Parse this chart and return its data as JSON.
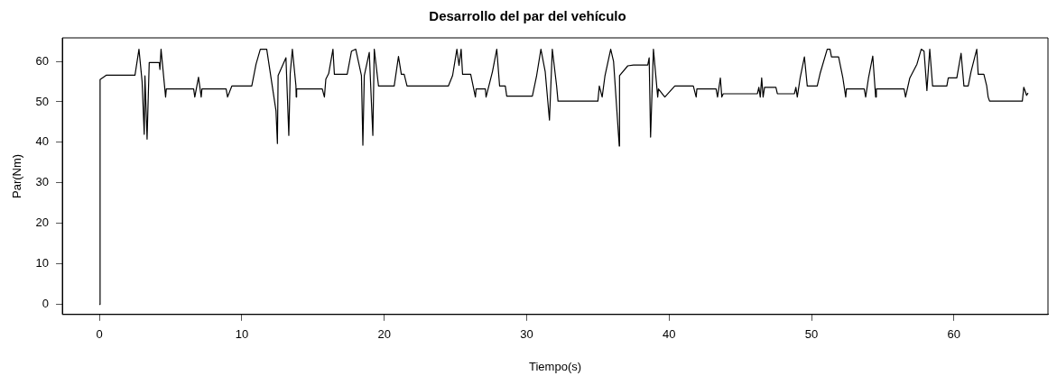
{
  "chart_data": {
    "type": "line",
    "title": "Desarrollo del par del vehículo",
    "xlabel": "Tiempo(s)",
    "ylabel": "Par(Nm)",
    "x": [
      0,
      0.05,
      0.5,
      2.5,
      2.78,
      3.0,
      3.15,
      3.2,
      3.35,
      3.5,
      4.2,
      4.25,
      4.33,
      4.65,
      4.7,
      6.62,
      6.7,
      6.96,
      7.15,
      7.2,
      8.9,
      9.0,
      9.3,
      10.7,
      11.0,
      11.3,
      11.75,
      12.4,
      12.5,
      12.55,
      13.1,
      13.3,
      13.4,
      13.55,
      13.8,
      13.82,
      13.85,
      15.65,
      15.8,
      15.9,
      16.1,
      16.4,
      16.5,
      17.4,
      17.7,
      18.0,
      18.4,
      18.5,
      18.6,
      18.95,
      19.2,
      19.3,
      19.6,
      20.7,
      21.0,
      21.2,
      21.4,
      21.6,
      24.5,
      24.8,
      25.1,
      25.25,
      25.4,
      25.5,
      26.07,
      26.4,
      26.45,
      27.1,
      27.15,
      27.6,
      27.9,
      28.1,
      28.5,
      28.6,
      30.4,
      30.7,
      31.0,
      31.3,
      31.6,
      31.8,
      32.1,
      32.2,
      35.0,
      35.1,
      35.3,
      35.5,
      35.9,
      36.1,
      36.5,
      36.52,
      37.1,
      37.5,
      38.5,
      38.6,
      38.7,
      38.9,
      39.2,
      39.25,
      39.7,
      40.4,
      41.7,
      41.9,
      41.95,
      43.3,
      43.4,
      43.6,
      43.7,
      43.8,
      46.2,
      46.3,
      46.4,
      46.5,
      46.6,
      46.7,
      47.5,
      47.6,
      48.8,
      48.9,
      49.0,
      49.2,
      49.5,
      49.7,
      50.4,
      50.6,
      51.1,
      51.3,
      51.4,
      51.9,
      52.2,
      52.4,
      52.45,
      53.7,
      53.8,
      54.0,
      54.3,
      54.5,
      54.55,
      56.5,
      56.6,
      56.9,
      57.4,
      57.7,
      57.9,
      58.1,
      58.3,
      58.5,
      59.5,
      59.6,
      60.2,
      60.5,
      60.7,
      61.0,
      61.2,
      61.6,
      61.7,
      62.1,
      62.3,
      62.4,
      62.5,
      64.8,
      64.9,
      65.1,
      65.2
    ],
    "series": [
      {
        "color": "#000000",
        "values": [
          0,
          55.5,
          56.6,
          56.6,
          63.0,
          55,
          42,
          56.4,
          40.8,
          59.7,
          59.7,
          58,
          63.0,
          51.2,
          53.2,
          53.2,
          51.2,
          56.1,
          51.2,
          53.2,
          53.2,
          51.2,
          53.9,
          53.9,
          59.3,
          63.0,
          63.0,
          47.8,
          39.7,
          56.5,
          60.9,
          41.7,
          57,
          63.0,
          54,
          51.2,
          53.2,
          53.2,
          51.2,
          55.6,
          57,
          63.0,
          56.8,
          56.8,
          62.5,
          63.0,
          56.5,
          39.3,
          56.5,
          62.2,
          41.7,
          63.0,
          53.9,
          53.9,
          61.2,
          56.8,
          56.8,
          53.9,
          53.9,
          56.5,
          63.0,
          59,
          63.0,
          56.8,
          56.8,
          51.2,
          53.2,
          53.2,
          51.2,
          57.5,
          63.0,
          53.9,
          53.9,
          51.4,
          51.4,
          56.5,
          63.0,
          57.5,
          45.5,
          63.0,
          54,
          50.2,
          50.2,
          53.9,
          51.2,
          56.5,
          63.0,
          60,
          39.1,
          56.5,
          58.9,
          59.1,
          59.1,
          60.9,
          41.3,
          63.0,
          51.2,
          53.2,
          51.2,
          53.9,
          53.9,
          51.2,
          53.2,
          53.2,
          51.2,
          55.9,
          51.2,
          52.0,
          52.0,
          53.6,
          51.2,
          55.9,
          51.2,
          53.6,
          53.6,
          52.0,
          52.0,
          53.6,
          51.2,
          55.9,
          61.1,
          53.9,
          53.9,
          57,
          63.0,
          63.0,
          61.1,
          61.1,
          55.9,
          51.2,
          53.2,
          53.2,
          51.2,
          55.9,
          61.3,
          51.2,
          53.2,
          53.2,
          51.2,
          55.9,
          59.3,
          63.0,
          62.5,
          52.8,
          63.0,
          53.9,
          53.9,
          55.9,
          55.9,
          62.0,
          53.9,
          53.9,
          57.5,
          63.0,
          56.8,
          56.8,
          53.9,
          51.2,
          50.2,
          50.2,
          53.6,
          51.6,
          52.2
        ]
      }
    ],
    "xlim": [
      -2.6,
      66.6
    ],
    "ylim": [
      -2.5,
      65.8
    ],
    "xticks": [
      0,
      10,
      20,
      30,
      40,
      50,
      60
    ],
    "yticks": [
      0,
      10,
      20,
      30,
      40,
      50,
      60
    ],
    "grid": false,
    "legend": false,
    "marker": "none",
    "line_style": "solid"
  }
}
